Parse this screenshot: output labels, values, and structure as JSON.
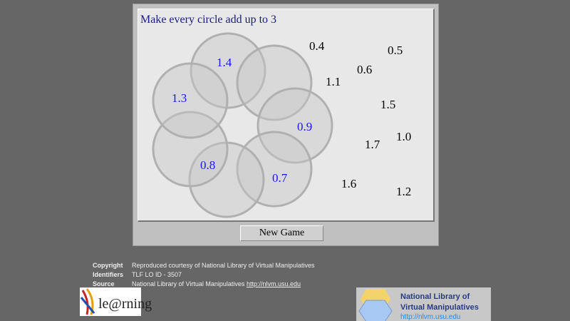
{
  "title": "Make every circle add up to 3",
  "circle_values": [
    "1.4",
    "1.3",
    "0.9",
    "0.8",
    "0.7"
  ],
  "tiles": [
    "0.4",
    "0.5",
    "0.6",
    "1.1",
    "1.5",
    "1.7",
    "1.0",
    "1.6",
    "1.2"
  ],
  "new_game_label": "New Game",
  "meta": {
    "copyright_label": "Copyright",
    "copyright": "Reproduced courtesy of National Library of Virtual Manipulatives",
    "identifiers_label": "Identifiers",
    "identifiers": "TLF LO ID - 3507",
    "source_label": "Source",
    "source": "National Library of Virtual Manipulatives",
    "source_link": "http://nlvm.usu.edu"
  },
  "logos": {
    "tlf": "le@rning",
    "nlvm_line1": "National Library of",
    "nlvm_line2": "Virtual Manipulatives",
    "nlvm_url": "http://nlvm.usu.edu"
  },
  "colors": {
    "circle_value": "#1515ff",
    "title": "#1a1a80",
    "background": "#666666"
  }
}
